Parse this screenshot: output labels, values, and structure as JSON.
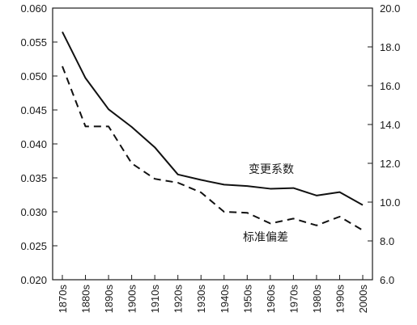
{
  "chart_data": {
    "type": "line",
    "categories": [
      "1870s",
      "1880s",
      "1890s",
      "1900s",
      "1910s",
      "1920s",
      "1930s",
      "1940s",
      "1950s",
      "1960s",
      "1970s",
      "1980s",
      "1990s",
      "2000s"
    ],
    "left_axis": {
      "ylim": [
        0.02,
        0.06
      ],
      "ticks": [
        "0.020",
        "0.025",
        "0.030",
        "0.035",
        "0.040",
        "0.045",
        "0.050",
        "0.055",
        "0.060"
      ]
    },
    "right_axis": {
      "ylim": [
        6.0,
        20.0
      ],
      "ticks": [
        "6.0",
        "8.0",
        "10.0",
        "12.0",
        "14.0",
        "16.0",
        "18.0",
        "20.0"
      ]
    },
    "series": [
      {
        "name": "变更系数",
        "axis": "left",
        "style": "solid",
        "values": [
          0.0565,
          0.0497,
          0.0451,
          0.0425,
          0.0395,
          0.0355,
          0.0347,
          0.034,
          0.0338,
          0.0334,
          0.0335,
          0.0324,
          0.0329,
          0.031
        ]
      },
      {
        "name": "标准偏差",
        "axis": "right",
        "style": "dashed",
        "values": [
          17.0,
          13.9,
          13.9,
          12.0,
          11.2,
          11.0,
          10.5,
          9.5,
          9.45,
          8.9,
          9.15,
          8.8,
          9.25,
          8.55
        ]
      }
    ],
    "grid": false,
    "legend": "inline labels"
  }
}
